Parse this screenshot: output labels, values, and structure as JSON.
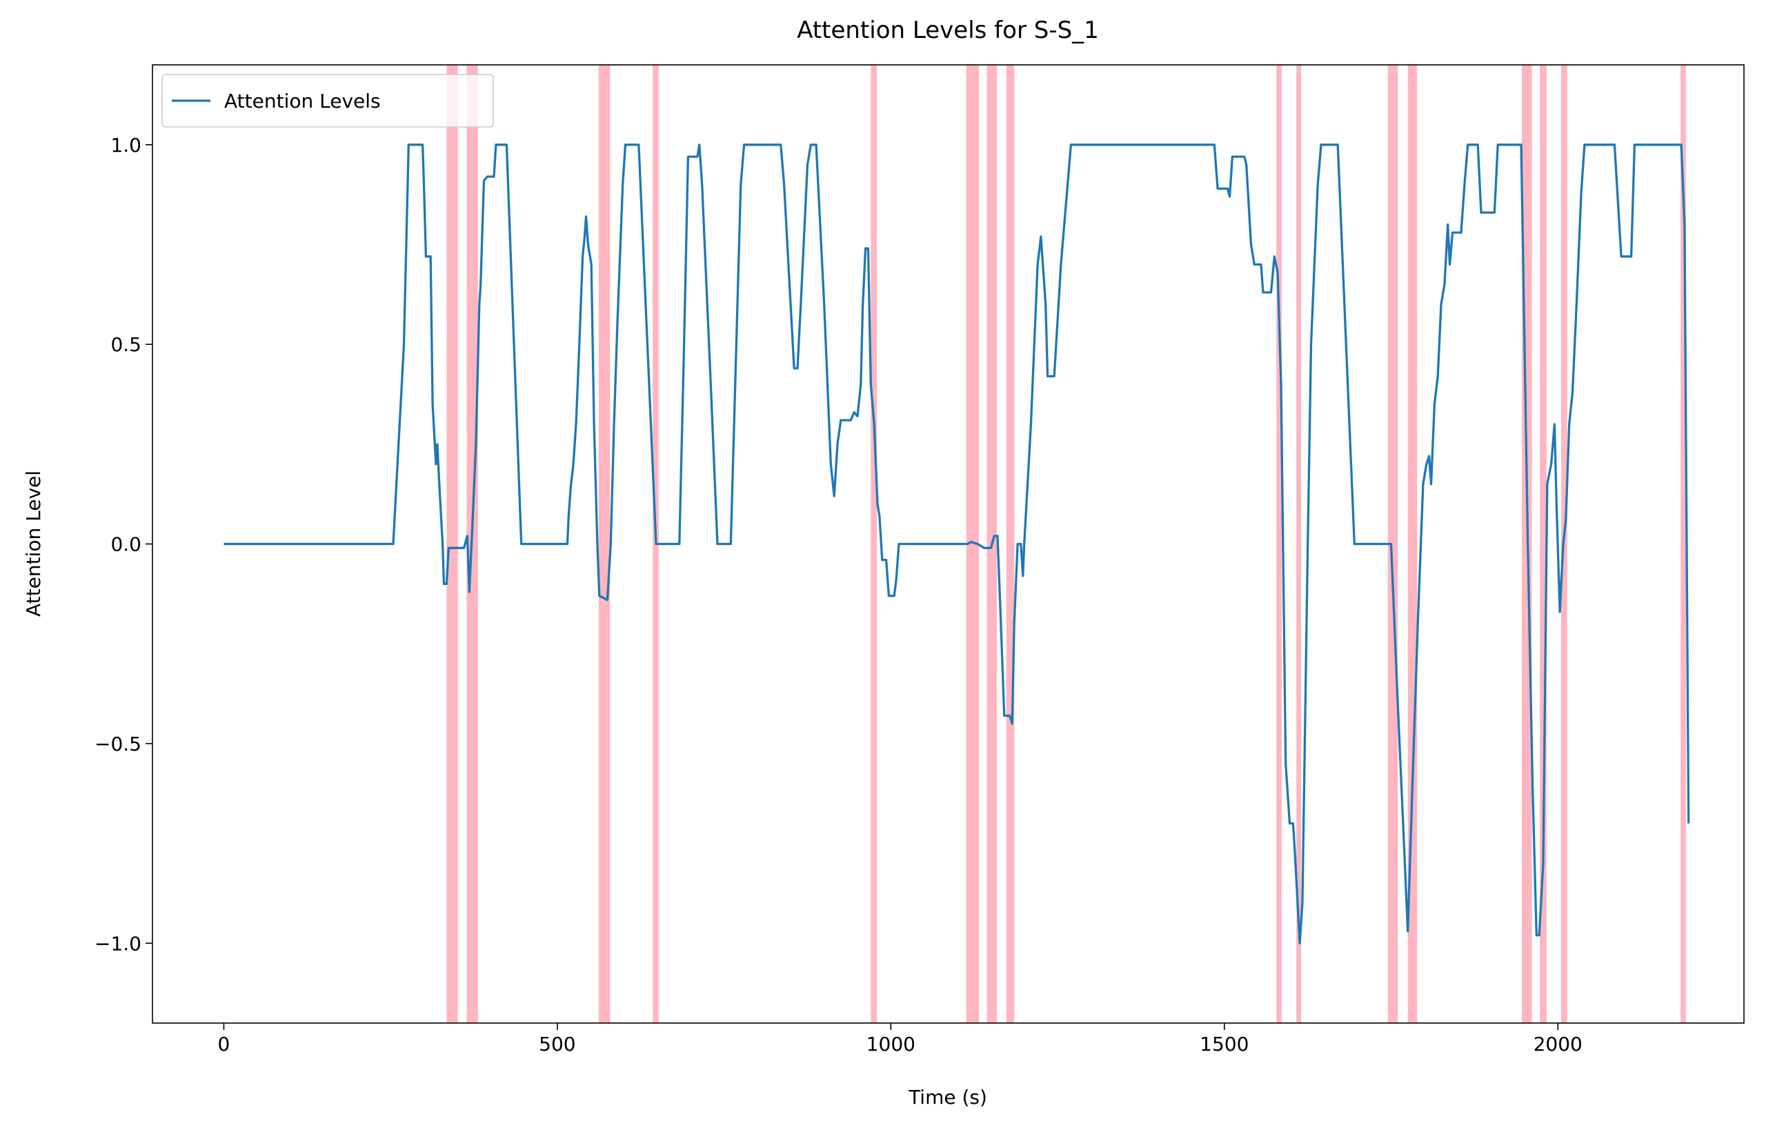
{
  "chart_data": {
    "type": "line",
    "title": "Attention Levels for S-S_1",
    "xlabel": "Time (s)",
    "ylabel": "Attention Level",
    "x": [
      0,
      254,
      270,
      277,
      298,
      300,
      303,
      310,
      313,
      318,
      320,
      323,
      328,
      330,
      334,
      337,
      360,
      365,
      368,
      372,
      378,
      383,
      385,
      390,
      395,
      405,
      408,
      422,
      424,
      446,
      515,
      517,
      520,
      524,
      528,
      533,
      538,
      541,
      543,
      546,
      551,
      555,
      560,
      563,
      575,
      580,
      585,
      590,
      598,
      602,
      622,
      648,
      683,
      690,
      696,
      710,
      713,
      717,
      730,
      740,
      760,
      775,
      780,
      835,
      840,
      855,
      860,
      865,
      875,
      880,
      888,
      900,
      910,
      915,
      920,
      925,
      940,
      945,
      950,
      955,
      958,
      962,
      966,
      970,
      975,
      980,
      983,
      987,
      993,
      997,
      1005,
      1008,
      1012,
      1115,
      1120,
      1130,
      1140,
      1150,
      1155,
      1160,
      1165,
      1170,
      1178,
      1182,
      1185,
      1190,
      1195,
      1198,
      1200,
      1210,
      1220,
      1225,
      1232,
      1235,
      1245,
      1255,
      1270,
      1485,
      1490,
      1505,
      1508,
      1512,
      1530,
      1533,
      1540,
      1545,
      1555,
      1558,
      1570,
      1575,
      1580,
      1585,
      1592,
      1598,
      1603,
      1606,
      1613,
      1617,
      1625,
      1630,
      1640,
      1645,
      1670,
      1695,
      1750,
      1760,
      1768,
      1775,
      1782,
      1790,
      1798,
      1803,
      1807,
      1810,
      1815,
      1820,
      1825,
      1830,
      1835,
      1838,
      1842,
      1855,
      1860,
      1865,
      1880,
      1885,
      1905,
      1910,
      1945,
      1955,
      1962,
      1968,
      1972,
      1978,
      1984,
      1990,
      1995,
      1998,
      2003,
      2008,
      2012,
      2017,
      2022,
      2028,
      2035,
      2040,
      2085,
      2095,
      2110,
      2115,
      2185,
      2190,
      2196
    ],
    "series": [
      {
        "name": "Attention Levels",
        "color": "#1f77b4",
        "values": [
          0,
          0,
          0.5,
          1.0,
          1.0,
          0.9,
          0.72,
          0.72,
          0.35,
          0.2,
          0.25,
          0.15,
          0.0,
          -0.1,
          -0.1,
          -0.01,
          -0.01,
          0.02,
          -0.12,
          0.02,
          0.25,
          0.6,
          0.65,
          0.91,
          0.92,
          0.92,
          1.0,
          1.0,
          1.0,
          0.0,
          0.0,
          0.07,
          0.14,
          0.2,
          0.3,
          0.5,
          0.72,
          0.77,
          0.82,
          0.75,
          0.7,
          0.3,
          0.0,
          -0.13,
          -0.14,
          0.0,
          0.3,
          0.55,
          0.9,
          1.0,
          1.0,
          0.0,
          0.0,
          0.5,
          0.97,
          0.97,
          1.0,
          0.9,
          0.4,
          0.0,
          0.0,
          0.9,
          1.0,
          1.0,
          0.9,
          0.44,
          0.44,
          0.6,
          0.95,
          1.0,
          1.0,
          0.6,
          0.2,
          0.12,
          0.25,
          0.31,
          0.31,
          0.33,
          0.32,
          0.4,
          0.6,
          0.74,
          0.74,
          0.4,
          0.3,
          0.1,
          0.07,
          -0.04,
          -0.04,
          -0.13,
          -0.13,
          -0.09,
          0.0,
          0.0,
          0.005,
          0.0,
          -0.01,
          -0.01,
          0.02,
          0.02,
          -0.2,
          -0.43,
          -0.43,
          -0.45,
          -0.2,
          0.0,
          0.0,
          -0.08,
          0.0,
          0.3,
          0.7,
          0.77,
          0.6,
          0.42,
          0.42,
          0.7,
          1.0,
          1.0,
          0.89,
          0.89,
          0.87,
          0.97,
          0.97,
          0.95,
          0.75,
          0.7,
          0.7,
          0.63,
          0.63,
          0.72,
          0.68,
          0.4,
          -0.55,
          -0.7,
          -0.7,
          -0.78,
          -1.0,
          -0.9,
          0.0,
          0.5,
          0.9,
          1.0,
          1.0,
          0.0,
          0.0,
          -0.4,
          -0.7,
          -0.97,
          -0.6,
          -0.2,
          0.15,
          0.2,
          0.22,
          0.15,
          0.35,
          0.42,
          0.6,
          0.65,
          0.8,
          0.7,
          0.78,
          0.78,
          0.9,
          1.0,
          1.0,
          0.83,
          0.83,
          1.0,
          1.0,
          0.0,
          -0.6,
          -0.98,
          -0.98,
          -0.8,
          0.15,
          0.2,
          0.3,
          0.1,
          -0.17,
          0.0,
          0.06,
          0.3,
          0.38,
          0.6,
          0.88,
          1.0,
          1.0,
          0.72,
          0.72,
          1.0,
          1.0,
          0.8,
          -0.7
        ]
      }
    ],
    "highlight_color": "#ffb6c1",
    "highlight_spans": [
      [
        334,
        351
      ],
      [
        364,
        381
      ],
      [
        562,
        579
      ],
      [
        643,
        652
      ],
      [
        970,
        979
      ],
      [
        1113,
        1132
      ],
      [
        1144,
        1159
      ],
      [
        1173,
        1185
      ],
      [
        1578,
        1586
      ],
      [
        1608,
        1615
      ],
      [
        1745,
        1760
      ],
      [
        1775,
        1789
      ],
      [
        1946,
        1961
      ],
      [
        1973,
        1983
      ],
      [
        2005,
        2014
      ],
      [
        2184,
        2192
      ]
    ],
    "xlim": [
      -107,
      2279
    ],
    "ylim": [
      -1.2,
      1.2
    ],
    "xticks": [
      0,
      500,
      1000,
      1500,
      2000
    ],
    "yticks": [
      {
        "value": -1.0,
        "label": "−1.0"
      },
      {
        "value": -0.5,
        "label": "−0.5"
      },
      {
        "value": 0.0,
        "label": "0.0"
      },
      {
        "value": 0.5,
        "label": "0.5"
      },
      {
        "value": 1.0,
        "label": "1.0"
      }
    ],
    "legend": "upper left"
  }
}
